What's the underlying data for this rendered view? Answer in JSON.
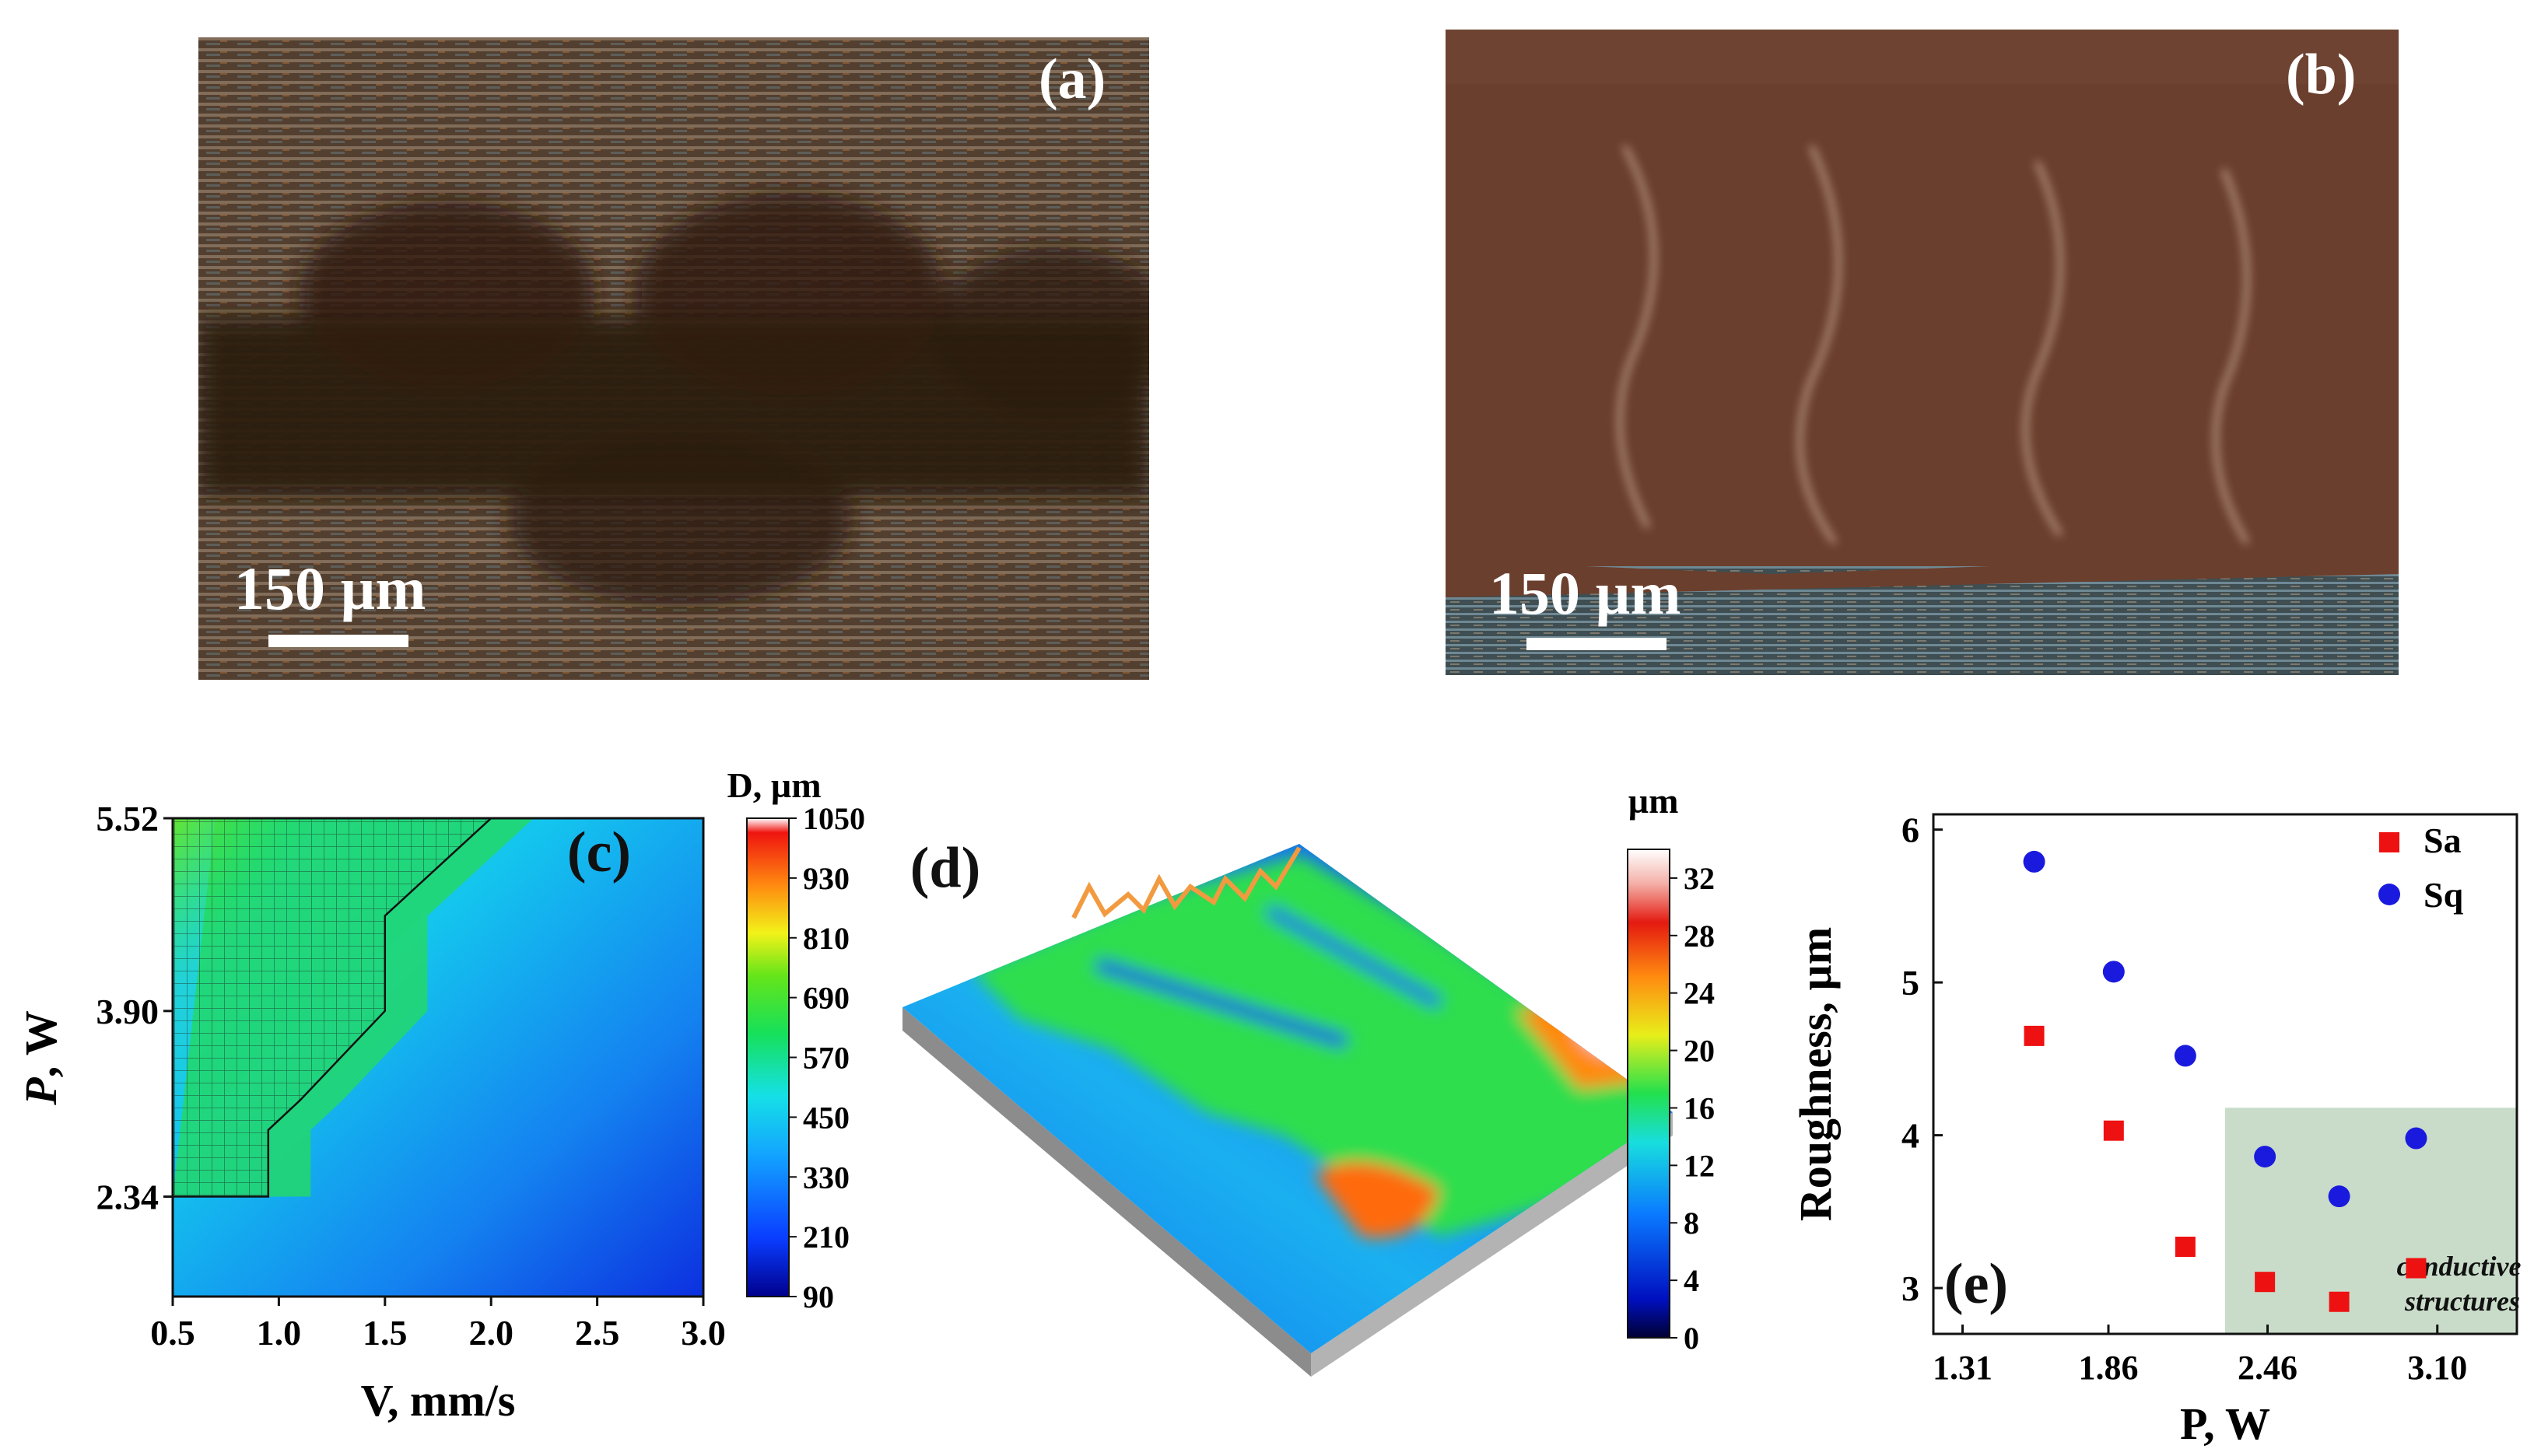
{
  "panels": {
    "a": {
      "label": "(a)",
      "scale_text": "150 µm",
      "description_colors": {
        "bg": "#4a3526",
        "track": "#2a1a10"
      }
    },
    "b": {
      "label": "(b)",
      "scale_text": "150 µm",
      "description_colors": {
        "bg": "#6b3e2c",
        "edge": "#5f7f8f"
      }
    },
    "c": {
      "label": "(c)"
    },
    "d": {
      "label": "(d)"
    },
    "e": {
      "label": "(e)"
    }
  },
  "chart_data": [
    {
      "id": "c",
      "type": "heatmap",
      "title": "",
      "xlabel": "V, mm/s",
      "ylabel_italic": "P",
      "ylabel_rest": ", W",
      "xlim": [
        0.5,
        3.0
      ],
      "x_ticks": [
        "0.5",
        "1.0",
        "1.5",
        "2.0",
        "2.5",
        "3.0"
      ],
      "y_ticks": [
        "5.52",
        "3.90",
        "2.34"
      ],
      "y_tick_values": [
        5.52,
        3.9,
        2.34
      ],
      "ylim": [
        1.5,
        5.52
      ],
      "colorbar": {
        "title": "D, µm",
        "ticks": [
          "1050",
          "930",
          "810",
          "690",
          "570",
          "450",
          "330",
          "210",
          "90"
        ],
        "range": [
          90,
          1050
        ]
      },
      "hatched_region_polygon_data_units": [
        [
          0.5,
          2.34
        ],
        [
          0.95,
          2.34
        ],
        [
          0.95,
          2.9
        ],
        [
          1.1,
          3.15
        ],
        [
          1.5,
          3.9
        ],
        [
          1.5,
          4.7
        ],
        [
          2.0,
          5.52
        ],
        [
          0.5,
          5.52
        ]
      ]
    },
    {
      "id": "d",
      "type": "surface",
      "colorbar": {
        "title": "µm",
        "ticks": [
          "32",
          "28",
          "24",
          "20",
          "16",
          "12",
          "8",
          "4",
          "0"
        ],
        "range": [
          0,
          34
        ]
      }
    },
    {
      "id": "e",
      "type": "scatter",
      "xlabel": "P, W",
      "ylabel": "Roughness, µm",
      "xlim": [
        1.2,
        3.4
      ],
      "ylim": [
        2.7,
        6.1
      ],
      "x_ticks": [
        "1.31",
        "1.86",
        "2.46",
        "3.10"
      ],
      "x_tick_values": [
        1.31,
        1.86,
        2.46,
        3.1
      ],
      "y_ticks": [
        "3",
        "4",
        "5",
        "6"
      ],
      "y_tick_values": [
        3,
        4,
        5,
        6
      ],
      "series": [
        {
          "name": "Sa",
          "marker": "square",
          "color": "#ee1111",
          "x": [
            1.58,
            1.88,
            2.15,
            2.45,
            2.73,
            3.02
          ],
          "y": [
            4.65,
            4.03,
            3.27,
            3.04,
            2.91,
            3.13
          ]
        },
        {
          "name": "Sq",
          "marker": "circle",
          "color": "#1a1adf",
          "x": [
            1.58,
            1.88,
            2.15,
            2.45,
            2.73,
            3.02
          ],
          "y": [
            5.79,
            5.07,
            4.52,
            3.86,
            3.6,
            3.98
          ]
        }
      ],
      "shaded_region": {
        "x": [
          2.3,
          3.4
        ],
        "y": [
          2.7,
          4.18
        ],
        "color": "#c9dcc9",
        "annotation": [
          "conductive",
          "structures"
        ]
      }
    }
  ]
}
